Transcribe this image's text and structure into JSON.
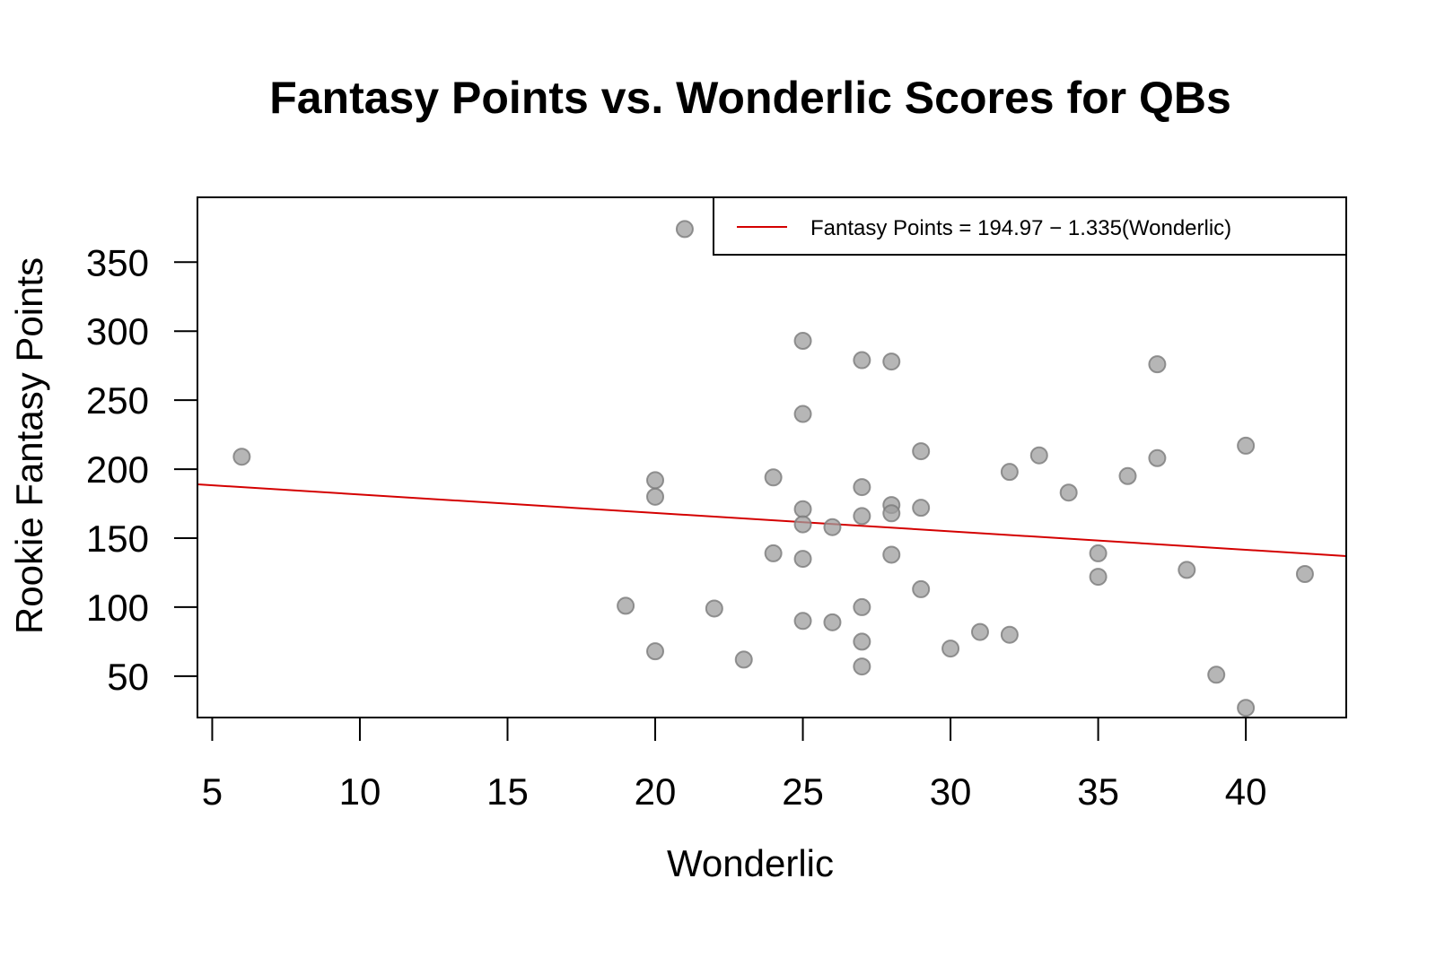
{
  "chart_data": {
    "type": "scatter",
    "title": "Fantasy Points vs. Wonderlic Scores for QBs",
    "xlabel": "Wonderlic",
    "ylabel": "Rookie Fantasy Points",
    "xlim": [
      4.5,
      43.4
    ],
    "ylim": [
      20,
      397
    ],
    "xticks": [
      5,
      10,
      15,
      20,
      25,
      30,
      35,
      40
    ],
    "yticks": [
      50,
      100,
      150,
      200,
      250,
      300,
      350
    ],
    "grid": false,
    "legend_position": "top-right",
    "point_color": "#9e9e9e",
    "line_color": "#d40000",
    "series": [
      {
        "points": [
          [
            6,
            209
          ],
          [
            19,
            101
          ],
          [
            20,
            192
          ],
          [
            20,
            180
          ],
          [
            20,
            68
          ],
          [
            21,
            374
          ],
          [
            22,
            99
          ],
          [
            23,
            62
          ],
          [
            24,
            194
          ],
          [
            24,
            139
          ],
          [
            25,
            293
          ],
          [
            25,
            240
          ],
          [
            25,
            171
          ],
          [
            25,
            160
          ],
          [
            25,
            135
          ],
          [
            25,
            90
          ],
          [
            26,
            158
          ],
          [
            26,
            89
          ],
          [
            27,
            279
          ],
          [
            27,
            187
          ],
          [
            27,
            166
          ],
          [
            27,
            100
          ],
          [
            27,
            75
          ],
          [
            27,
            57
          ],
          [
            28,
            278
          ],
          [
            28,
            174
          ],
          [
            28,
            168
          ],
          [
            28,
            138
          ],
          [
            29,
            213
          ],
          [
            29,
            172
          ],
          [
            29,
            113
          ],
          [
            30,
            70
          ],
          [
            31,
            82
          ],
          [
            32,
            198
          ],
          [
            32,
            80
          ],
          [
            33,
            210
          ],
          [
            34,
            183
          ],
          [
            35,
            139
          ],
          [
            35,
            122
          ],
          [
            36,
            195
          ],
          [
            37,
            276
          ],
          [
            37,
            208
          ],
          [
            38,
            127
          ],
          [
            39,
            51
          ],
          [
            40,
            217
          ],
          [
            40,
            27
          ],
          [
            42,
            124
          ]
        ]
      }
    ],
    "regression": {
      "label": "Fantasy Points = 194.97 − 1.335(Wonderlic)",
      "intercept": 194.97,
      "slope": -1.335
    }
  }
}
